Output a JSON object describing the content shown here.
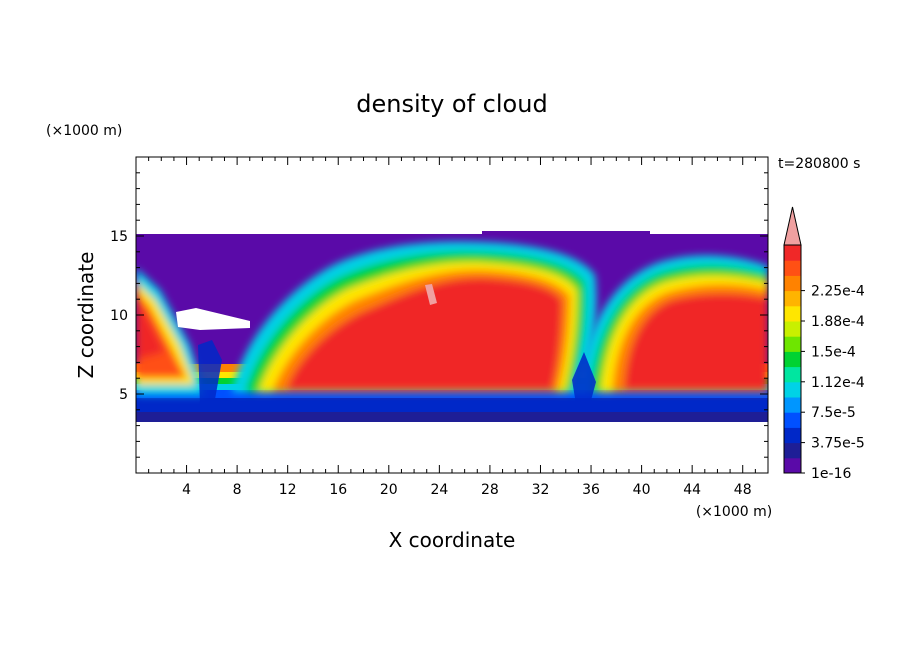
{
  "chart_data": {
    "type": "heatmap",
    "title": "density of cloud",
    "xlabel": "X coordinate",
    "ylabel": "Z coordinate",
    "x_unit": "(×1000 m)",
    "y_unit": "(×1000 m)",
    "time_label": "t=280800 s",
    "xlim": [
      0,
      50
    ],
    "ylim": [
      0,
      20
    ],
    "x_ticks": [
      4,
      8,
      12,
      16,
      20,
      24,
      28,
      32,
      36,
      40,
      44,
      48
    ],
    "y_ticks": [
      5,
      10,
      15
    ],
    "colorbar": {
      "labels": [
        "1e-16",
        "3.75e-5",
        "7.5e-5",
        "1.12e-4",
        "1.5e-4",
        "1.88e-4",
        "2.25e-4"
      ],
      "colors": [
        "#5a0aa8",
        "#1e1e96",
        "#0028c8",
        "#0050ff",
        "#0096ff",
        "#00d2e6",
        "#00e6a0",
        "#00d232",
        "#6ee600",
        "#c8f000",
        "#ffe600",
        "#ffb400",
        "#ff8200",
        "#ff5014",
        "#f02828"
      ],
      "overflow_color": "#f0a0a0"
    },
    "regions": [
      {
        "name": "cloud layer extent",
        "x": [
          0,
          50
        ],
        "z": [
          3.5,
          15
        ],
        "value": "1e-16"
      },
      {
        "name": "high-density region (left)",
        "x": [
          0,
          6
        ],
        "z": [
          6,
          12
        ],
        "value": "2.25e-4"
      },
      {
        "name": "high-density region (center)",
        "x": [
          14,
          36
        ],
        "z": [
          6,
          13
        ],
        "value": "2.25e-4"
      },
      {
        "name": "high-density region (right)",
        "x": [
          37,
          50
        ],
        "z": [
          6,
          13.5
        ],
        "value": "2.25e-4"
      }
    ]
  }
}
